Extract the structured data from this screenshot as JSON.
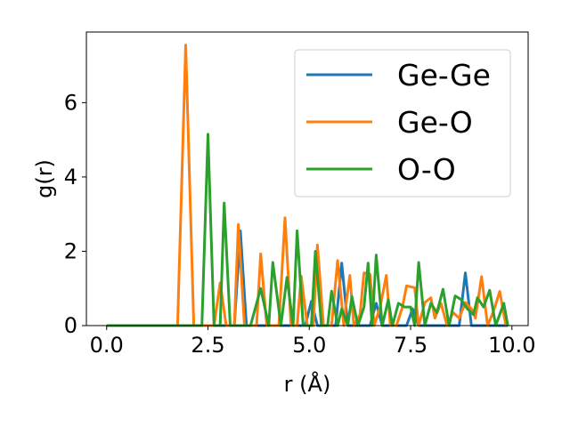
{
  "chart_data": {
    "type": "line",
    "xlabel": "r (Å)",
    "ylabel": "g(r)",
    "xlim": [
      -0.5,
      10.4
    ],
    "ylim": [
      0,
      7.9
    ],
    "xticks": [
      0.0,
      2.5,
      5.0,
      7.5,
      10.0
    ],
    "xtick_labels": [
      "0.0",
      "2.5",
      "5.0",
      "7.5",
      "10.0"
    ],
    "yticks": [
      0,
      2,
      4,
      6
    ],
    "ytick_labels": [
      "0",
      "2",
      "4",
      "6"
    ],
    "grid": false,
    "legend_position": "top-right",
    "series": [
      {
        "name": "Ge-Ge",
        "color": "#1f77b4",
        "points": [
          [
            0,
            0
          ],
          [
            3.0,
            0
          ],
          [
            3.15,
            0
          ],
          [
            3.3,
            2.55
          ],
          [
            3.45,
            0
          ],
          [
            4.9,
            0
          ],
          [
            5.05,
            0.65
          ],
          [
            5.2,
            0
          ],
          [
            5.65,
            0
          ],
          [
            5.8,
            1.68
          ],
          [
            5.95,
            0
          ],
          [
            6.5,
            0
          ],
          [
            6.65,
            0.6
          ],
          [
            6.8,
            0
          ],
          [
            7.4,
            0
          ],
          [
            7.55,
            0.45
          ],
          [
            7.7,
            0
          ],
          [
            8.7,
            0
          ],
          [
            8.85,
            1.42
          ],
          [
            9.0,
            0
          ],
          [
            9.9,
            0
          ]
        ]
      },
      {
        "name": "Ge-O",
        "color": "#ff7f0e",
        "points": [
          [
            0,
            0
          ],
          [
            1.75,
            0
          ],
          [
            1.95,
            7.55
          ],
          [
            2.15,
            0
          ],
          [
            2.65,
            0
          ],
          [
            2.8,
            1.15
          ],
          [
            2.95,
            0
          ],
          [
            3.15,
            0
          ],
          [
            3.25,
            2.72
          ],
          [
            3.4,
            0
          ],
          [
            3.7,
            0
          ],
          [
            3.8,
            1.93
          ],
          [
            3.95,
            0
          ],
          [
            4.25,
            0
          ],
          [
            4.4,
            2.9
          ],
          [
            4.55,
            0
          ],
          [
            4.7,
            0
          ],
          [
            4.8,
            1.33
          ],
          [
            4.95,
            0
          ],
          [
            5.1,
            0
          ],
          [
            5.2,
            2.17
          ],
          [
            5.35,
            0
          ],
          [
            5.55,
            0
          ],
          [
            5.7,
            1.75
          ],
          [
            5.85,
            0
          ],
          [
            5.9,
            0.5
          ],
          [
            6.0,
            1.35
          ],
          [
            6.1,
            0
          ],
          [
            6.25,
            0.3
          ],
          [
            6.35,
            1.42
          ],
          [
            6.5,
            1.38
          ],
          [
            6.6,
            0
          ],
          [
            6.75,
            0.5
          ],
          [
            6.9,
            1.35
          ],
          [
            7.0,
            0
          ],
          [
            7.15,
            0
          ],
          [
            7.3,
            0.5
          ],
          [
            7.4,
            1.07
          ],
          [
            7.6,
            1.02
          ],
          [
            7.7,
            0
          ],
          [
            7.85,
            0.62
          ],
          [
            8.0,
            0.75
          ],
          [
            8.1,
            0.2
          ],
          [
            8.25,
            0.6
          ],
          [
            8.4,
            0
          ],
          [
            8.55,
            0.35
          ],
          [
            8.7,
            0.2
          ],
          [
            8.85,
            0.62
          ],
          [
            9.0,
            0.45
          ],
          [
            9.1,
            0.2
          ],
          [
            9.25,
            1.32
          ],
          [
            9.4,
            0
          ],
          [
            9.55,
            0.4
          ],
          [
            9.7,
            0.92
          ],
          [
            9.85,
            0
          ]
        ]
      },
      {
        "name": "O-O",
        "color": "#2ca02c",
        "points": [
          [
            0,
            0
          ],
          [
            2.35,
            0
          ],
          [
            2.5,
            5.15
          ],
          [
            2.65,
            0
          ],
          [
            2.8,
            0
          ],
          [
            2.9,
            3.3
          ],
          [
            3.05,
            0
          ],
          [
            3.55,
            0
          ],
          [
            3.8,
            1.0
          ],
          [
            4.0,
            0
          ],
          [
            4.1,
            1.7
          ],
          [
            4.3,
            0
          ],
          [
            4.45,
            1.3
          ],
          [
            4.6,
            0
          ],
          [
            4.7,
            2.55
          ],
          [
            4.85,
            0
          ],
          [
            5.05,
            0
          ],
          [
            5.15,
            2.0
          ],
          [
            5.3,
            0
          ],
          [
            5.45,
            0
          ],
          [
            5.55,
            0.93
          ],
          [
            5.7,
            0
          ],
          [
            5.8,
            0.45
          ],
          [
            5.95,
            0
          ],
          [
            6.05,
            0.78
          ],
          [
            6.2,
            0
          ],
          [
            6.35,
            0.5
          ],
          [
            6.45,
            1.68
          ],
          [
            6.55,
            0
          ],
          [
            6.65,
            1.9
          ],
          [
            6.8,
            0
          ],
          [
            6.95,
            0.7
          ],
          [
            7.05,
            0
          ],
          [
            7.2,
            0.6
          ],
          [
            7.35,
            0.5
          ],
          [
            7.5,
            0.5
          ],
          [
            7.6,
            0
          ],
          [
            7.7,
            1.7
          ],
          [
            7.85,
            0
          ],
          [
            8.0,
            0.6
          ],
          [
            8.15,
            0.35
          ],
          [
            8.3,
            0.98
          ],
          [
            8.45,
            0
          ],
          [
            8.6,
            0.8
          ],
          [
            8.75,
            0.7
          ],
          [
            8.9,
            0.45
          ],
          [
            9.05,
            0.3
          ],
          [
            9.15,
            0.75
          ],
          [
            9.3,
            0.5
          ],
          [
            9.45,
            0.95
          ],
          [
            9.6,
            0
          ],
          [
            9.8,
            0.6
          ],
          [
            9.9,
            0
          ]
        ]
      }
    ]
  }
}
